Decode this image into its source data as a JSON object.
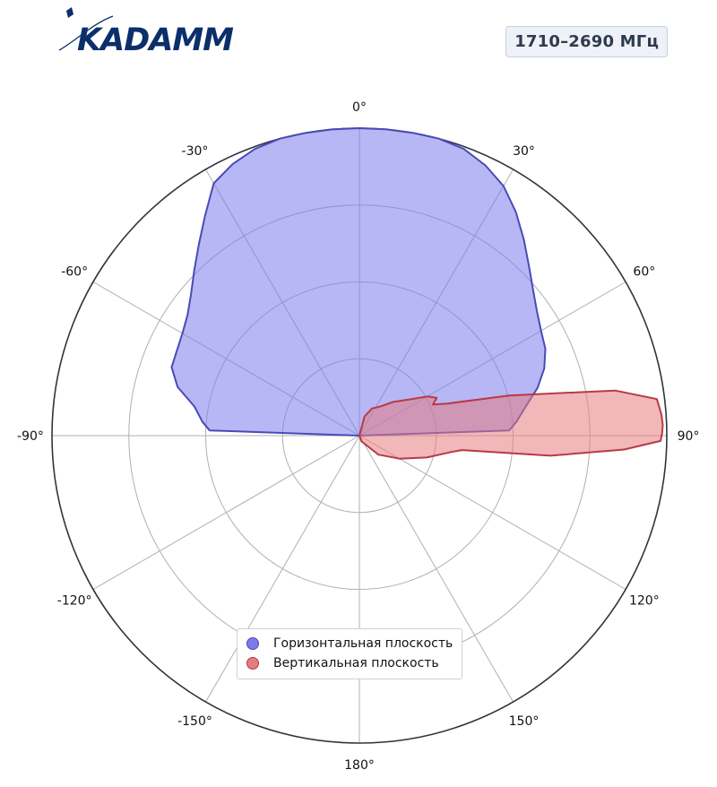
{
  "brand": {
    "logo_text": "KADAMM",
    "colors": {
      "logo": "#0b2f6b"
    }
  },
  "band_label": "1710–2690 МГц",
  "chart_data": {
    "type": "polar-area",
    "theta_zero": "top",
    "theta_direction": "clockwise",
    "theta_ticks": [
      {
        "angle": 0,
        "label": "0°"
      },
      {
        "angle": 30,
        "label": "30°"
      },
      {
        "angle": 60,
        "label": "60°"
      },
      {
        "angle": 90,
        "label": "90°"
      },
      {
        "angle": 120,
        "label": "120°"
      },
      {
        "angle": 150,
        "label": "150°"
      },
      {
        "angle": 180,
        "label": "180°"
      },
      {
        "angle": -150,
        "label": "-150°"
      },
      {
        "angle": -120,
        "label": "-120°"
      },
      {
        "angle": -90,
        "label": "-90°"
      },
      {
        "angle": -60,
        "label": "-60°"
      },
      {
        "angle": -30,
        "label": "-30°"
      }
    ],
    "r_range": [
      0,
      4
    ],
    "r_grid": [
      1,
      2,
      3,
      4
    ],
    "grid": true,
    "legend_position": "bottom-center",
    "series": [
      {
        "name": "Горизонтальная плоскость",
        "fill": "#7b7bec",
        "fill_opacity": 0.55,
        "stroke": "#4a4ab8",
        "points": [
          [
            -90,
            0
          ],
          [
            -88,
            1.95
          ],
          [
            -85,
            2.05
          ],
          [
            -80,
            2.18
          ],
          [
            -75,
            2.45
          ],
          [
            -70,
            2.6
          ],
          [
            -65,
            2.62
          ],
          [
            -60,
            2.66
          ],
          [
            -55,
            2.73
          ],
          [
            -50,
            2.86
          ],
          [
            -45,
            3.04
          ],
          [
            -40,
            3.25
          ],
          [
            -35,
            3.5
          ],
          [
            -30,
            3.79
          ],
          [
            -25,
            3.9
          ],
          [
            -20,
            3.97
          ],
          [
            -15,
            4.0
          ],
          [
            -10,
            4.0
          ],
          [
            -5,
            4.0
          ],
          [
            0,
            4.0
          ],
          [
            5,
            4.0
          ],
          [
            10,
            4.0
          ],
          [
            15,
            4.0
          ],
          [
            20,
            3.97
          ],
          [
            25,
            3.88
          ],
          [
            30,
            3.75
          ],
          [
            35,
            3.55
          ],
          [
            40,
            3.33
          ],
          [
            45,
            3.12
          ],
          [
            50,
            2.95
          ],
          [
            55,
            2.82
          ],
          [
            60,
            2.73
          ],
          [
            65,
            2.67
          ],
          [
            70,
            2.56
          ],
          [
            75,
            2.4
          ],
          [
            80,
            2.2
          ],
          [
            85,
            2.05
          ],
          [
            88,
            1.95
          ],
          [
            90,
            0
          ]
        ]
      },
      {
        "name": "Вертикальная плоскость",
        "fill": "#e57b7f",
        "fill_opacity": 0.55,
        "stroke": "#b83a44",
        "points": [
          [
            0,
            0
          ],
          [
            15,
            0.26
          ],
          [
            25,
            0.39
          ],
          [
            35,
            0.46
          ],
          [
            45,
            0.62
          ],
          [
            55,
            0.83
          ],
          [
            60,
            1.02
          ],
          [
            64,
            1.12
          ],
          [
            67,
            1.04
          ],
          [
            70,
            1.22
          ],
          [
            75,
            2.02
          ],
          [
            80,
            3.38
          ],
          [
            83,
            3.9
          ],
          [
            86,
            3.94
          ],
          [
            88,
            3.95
          ],
          [
            89.5,
            3.94
          ],
          [
            91,
            3.92
          ],
          [
            93,
            3.45
          ],
          [
            96,
            2.5
          ],
          [
            98,
            1.35
          ],
          [
            100,
            1.22
          ],
          [
            108,
            0.92
          ],
          [
            120,
            0.6
          ],
          [
            135,
            0.35
          ],
          [
            160,
            0.08
          ],
          [
            180,
            0
          ]
        ]
      }
    ]
  }
}
